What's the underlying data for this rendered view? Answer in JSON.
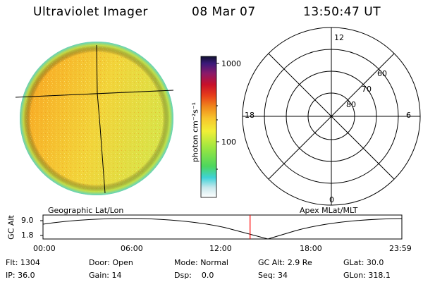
{
  "header": {
    "title": "Ultraviolet Imager",
    "date": "08 Mar 07",
    "time": "13:50:47 UT"
  },
  "colorbar": {
    "unit_label": "photon cm⁻²s⁻¹",
    "ticks": [
      "1000",
      "100"
    ]
  },
  "polar_plot": {
    "mlt_labels": [
      "12",
      "18",
      "6",
      "0"
    ],
    "lat_labels": [
      "60",
      "70",
      "80"
    ]
  },
  "timeline": {
    "left_title": "Geographic Lat/Lon",
    "right_title": "Apex MLat/MLT",
    "y_axis_label": "GC Alt",
    "y_ticks": [
      "9.0",
      "1.8"
    ],
    "x_ticks": [
      "00:00",
      "06:00",
      "12:00",
      "18:00",
      "23:59"
    ],
    "current_time_hours": 13.85,
    "marker_color": "#ff0000"
  },
  "status": {
    "row1": [
      {
        "key": "Flt:",
        "value": "1304"
      },
      {
        "key": "Door:",
        "value": "Open"
      },
      {
        "key": "Mode:",
        "value": "Normal"
      },
      {
        "key": "GC Alt:",
        "value": "2.9 Re"
      },
      {
        "key": "GLat:",
        "value": "30.0"
      }
    ],
    "row2": [
      {
        "key": "IP:",
        "value": "36.0"
      },
      {
        "key": "Gain:",
        "value": "14"
      },
      {
        "key": "Dsp:",
        "value": "0.0"
      },
      {
        "key": "Seq:",
        "value": "34"
      },
      {
        "key": "GLon:",
        "value": "318.1"
      }
    ]
  }
}
